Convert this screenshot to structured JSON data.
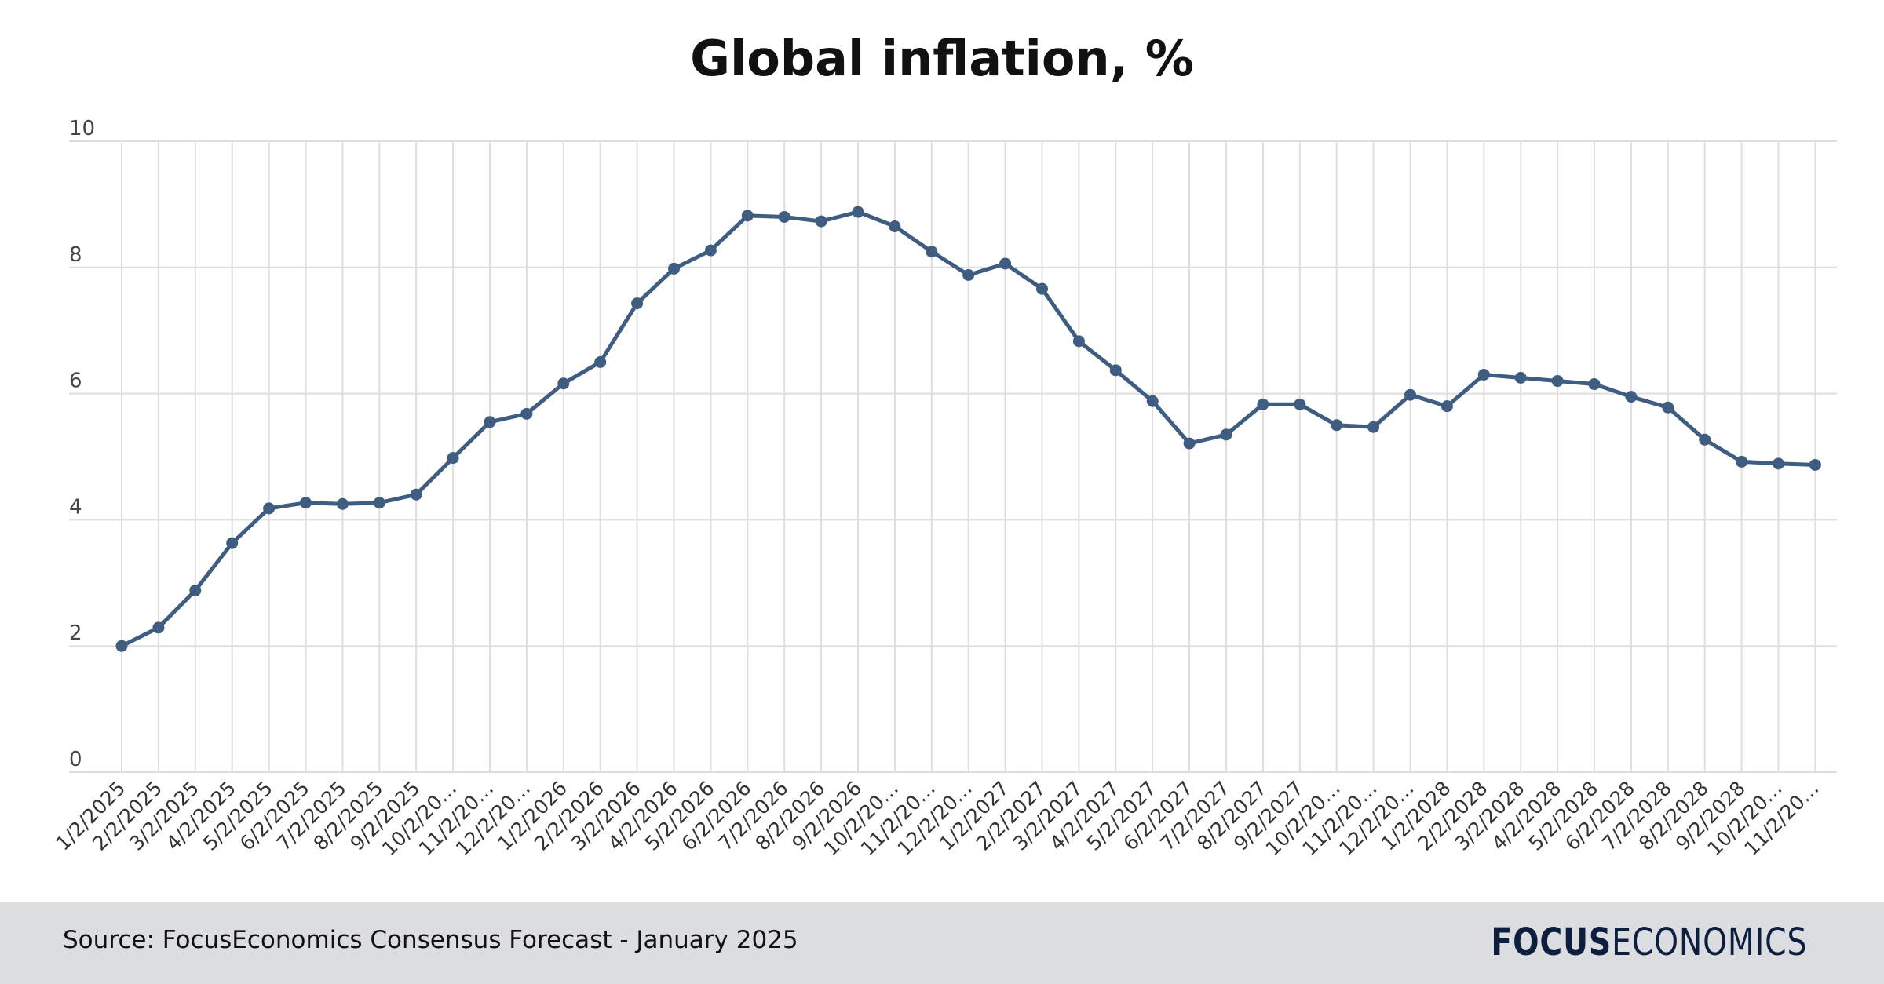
{
  "chart_data": {
    "type": "line",
    "title": "Global inflation, %",
    "xlabel": "",
    "ylabel": "",
    "ylim": [
      0,
      10
    ],
    "yticks": [
      0,
      2,
      4,
      6,
      8,
      10
    ],
    "grid": true,
    "line_color": "#3e5d80",
    "categories": [
      "1/2/2025",
      "2/2/2025",
      "3/2/2025",
      "4/2/2025",
      "5/2/2025",
      "6/2/2025",
      "7/2/2025",
      "8/2/2025",
      "9/2/2025",
      "10/2/20…",
      "11/2/20…",
      "12/2/20…",
      "1/2/2026",
      "2/2/2026",
      "3/2/2026",
      "4/2/2026",
      "5/2/2026",
      "6/2/2026",
      "7/2/2026",
      "8/2/2026",
      "9/2/2026",
      "10/2/20…",
      "11/2/20…",
      "12/2/20…",
      "1/2/2027",
      "2/2/2027",
      "3/2/2027",
      "4/2/2027",
      "5/2/2027",
      "6/2/2027",
      "7/2/2027",
      "8/2/2027",
      "9/2/2027",
      "10/2/20…",
      "11/2/20…",
      "12/2/20…",
      "1/2/2028",
      "2/2/2028",
      "3/2/2028",
      "4/2/2028",
      "5/2/2028",
      "6/2/2028",
      "7/2/2028",
      "8/2/2028",
      "9/2/2028",
      "10/2/20…",
      "11/2/20…"
    ],
    "series": [
      {
        "name": "Global inflation",
        "values": [
          2.0,
          2.29,
          2.88,
          3.63,
          4.18,
          4.27,
          4.25,
          4.27,
          4.4,
          4.98,
          5.55,
          5.68,
          6.16,
          6.5,
          7.43,
          7.98,
          8.27,
          8.82,
          8.8,
          8.73,
          8.88,
          8.65,
          8.25,
          7.88,
          8.06,
          7.66,
          6.83,
          6.37,
          5.88,
          5.21,
          5.35,
          5.83,
          5.83,
          5.5,
          5.47,
          5.98,
          5.8,
          6.3,
          6.25,
          6.2,
          6.15,
          5.95,
          5.78,
          5.27,
          4.92,
          4.89,
          4.87
        ]
      }
    ]
  },
  "footer": {
    "source": "Source: FocusEconomics Consensus Forecast - January 2025",
    "logo_bold": "FOCUS",
    "logo_light": "ECONOMICS"
  }
}
